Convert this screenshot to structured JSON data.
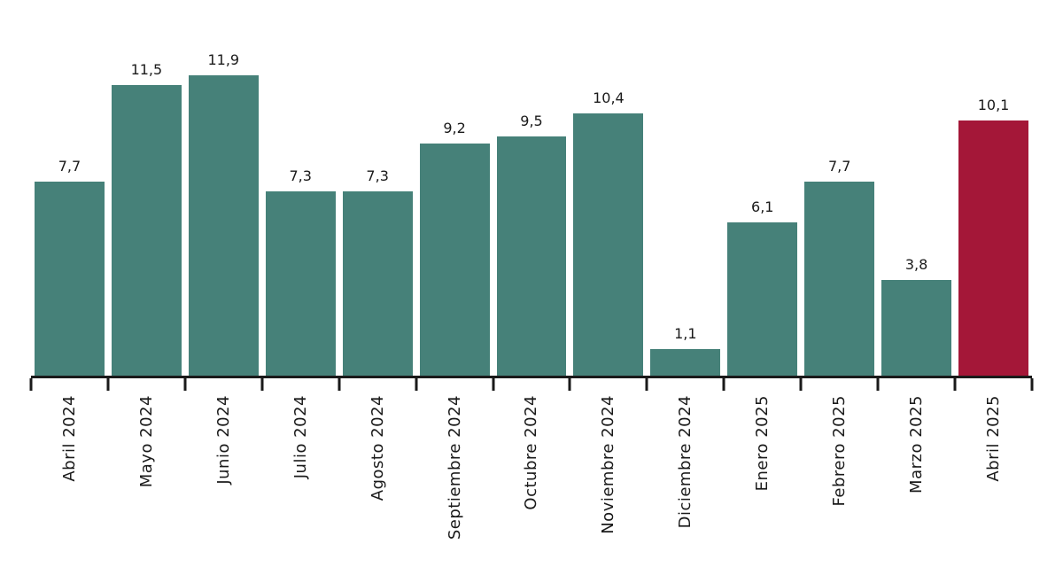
{
  "chart_data": {
    "type": "bar",
    "categories": [
      "Abril 2024",
      "Mayo 2024",
      "Junio 2024",
      "Julio 2024",
      "Agosto 2024",
      "Septiembre 2024",
      "Octubre 2024",
      "Noviembre 2024",
      "Diciembre 2024",
      "Enero 2025",
      "Febrero 2025",
      "Marzo 2025",
      "Abril 2025"
    ],
    "values": [
      7.7,
      11.5,
      11.9,
      7.3,
      7.3,
      9.2,
      9.5,
      10.4,
      1.1,
      6.1,
      7.7,
      3.8,
      10.1
    ],
    "value_labels": [
      "7,7",
      "11,5",
      "11,9",
      "7,3",
      "7,3",
      "9,2",
      "9,5",
      "10,4",
      "1,1",
      "6,1",
      "7,7",
      "3,8",
      "10,1"
    ],
    "title": "",
    "xlabel": "",
    "ylabel": "",
    "ylim": [
      0,
      12
    ],
    "grid": false,
    "legend": false,
    "y_axis_visible": false,
    "decimal_separator": ",",
    "highlight_index": 12,
    "colors": {
      "bar_default": "#468179",
      "bar_highlight": "#A41738",
      "axis": "#1A1A1A",
      "text": "#1A1A1A"
    }
  }
}
